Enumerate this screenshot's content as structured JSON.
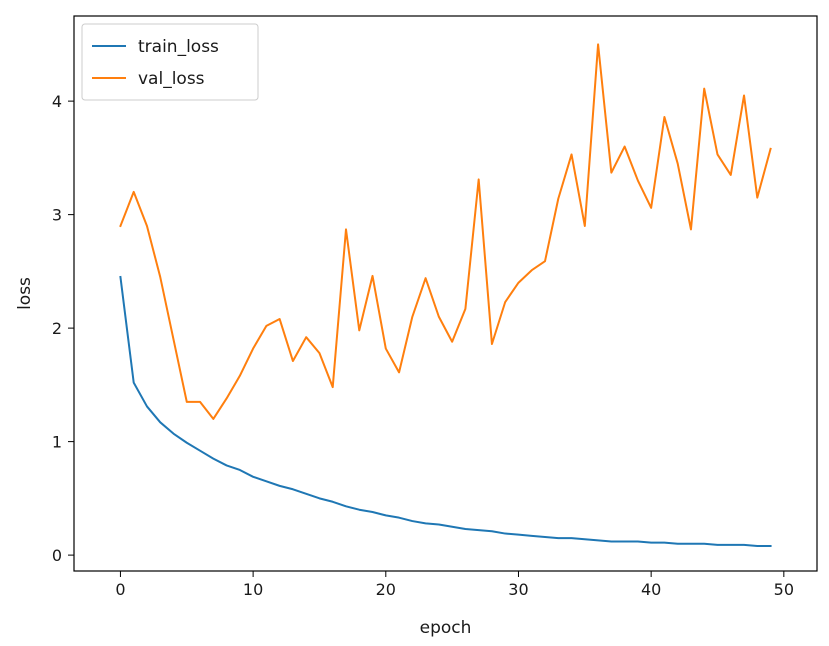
{
  "chart_data": {
    "type": "line",
    "title": "",
    "xlabel": "epoch",
    "ylabel": "loss",
    "xlim": [
      -3.5,
      52.5
    ],
    "ylim": [
      -0.14,
      4.75
    ],
    "xticks": [
      0,
      10,
      20,
      30,
      40,
      50
    ],
    "yticks": [
      0,
      1,
      2,
      3,
      4
    ],
    "grid": false,
    "legend_position": "top-left",
    "x": [
      0,
      1,
      2,
      3,
      4,
      5,
      6,
      7,
      8,
      9,
      10,
      11,
      12,
      13,
      14,
      15,
      16,
      17,
      18,
      19,
      20,
      21,
      22,
      23,
      24,
      25,
      26,
      27,
      28,
      29,
      30,
      31,
      32,
      33,
      34,
      35,
      36,
      37,
      38,
      39,
      40,
      41,
      42,
      43,
      44,
      45,
      46,
      47,
      48,
      49
    ],
    "series": [
      {
        "name": "train_loss",
        "color": "#1f77b4",
        "values": [
          2.45,
          1.52,
          1.31,
          1.17,
          1.07,
          0.99,
          0.92,
          0.85,
          0.79,
          0.75,
          0.69,
          0.65,
          0.61,
          0.58,
          0.54,
          0.5,
          0.47,
          0.43,
          0.4,
          0.38,
          0.35,
          0.33,
          0.3,
          0.28,
          0.27,
          0.25,
          0.23,
          0.22,
          0.21,
          0.19,
          0.18,
          0.17,
          0.16,
          0.15,
          0.15,
          0.14,
          0.13,
          0.12,
          0.12,
          0.12,
          0.11,
          0.11,
          0.1,
          0.1,
          0.1,
          0.09,
          0.09,
          0.09,
          0.08,
          0.08
        ]
      },
      {
        "name": "val_loss",
        "color": "#ff7f0e",
        "values": [
          2.9,
          3.2,
          2.9,
          2.45,
          1.9,
          1.35,
          1.35,
          1.2,
          1.38,
          1.58,
          1.82,
          2.02,
          2.08,
          1.71,
          1.92,
          1.78,
          1.48,
          2.87,
          1.98,
          2.46,
          1.82,
          1.61,
          2.1,
          2.44,
          2.1,
          1.88,
          2.17,
          3.31,
          1.86,
          2.23,
          2.4,
          2.51,
          2.59,
          3.14,
          3.53,
          2.9,
          4.5,
          3.37,
          3.6,
          3.3,
          3.06,
          3.86,
          3.45,
          2.87,
          4.11,
          3.53,
          3.35,
          4.05,
          3.15,
          3.58
        ]
      }
    ]
  }
}
